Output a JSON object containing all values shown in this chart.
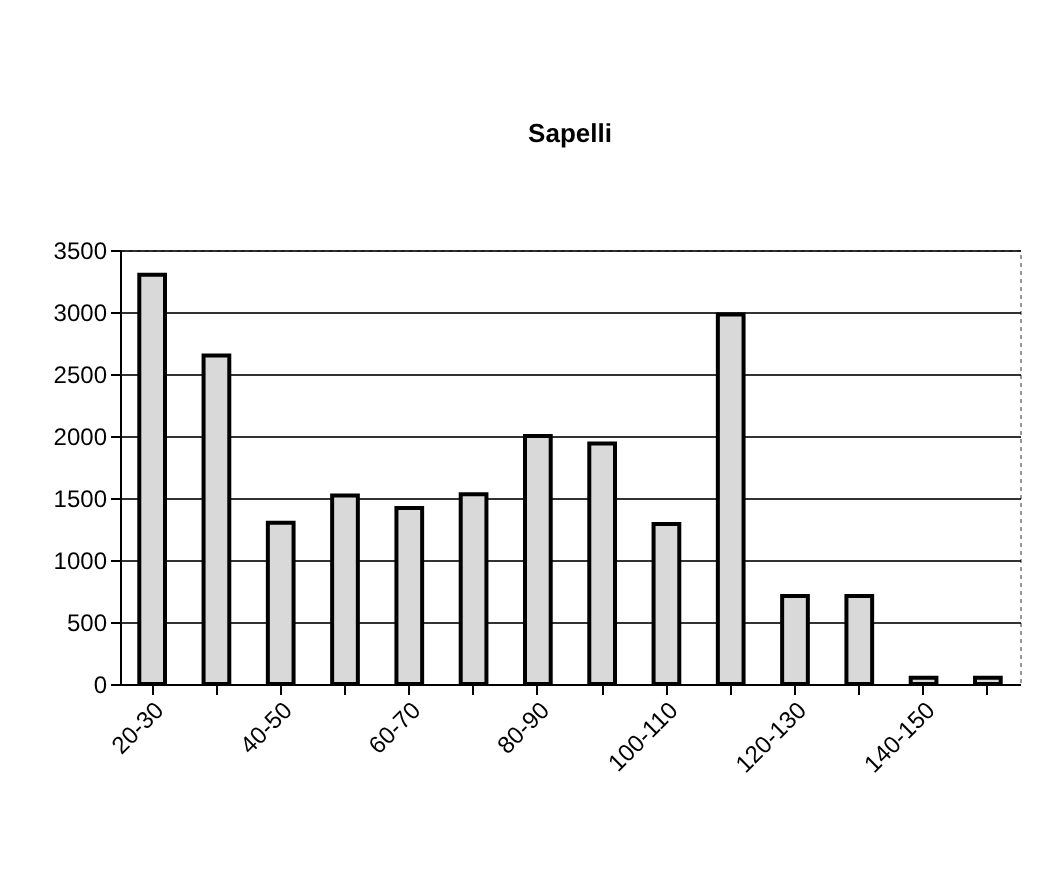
{
  "chart_data": {
    "type": "bar",
    "title": "Sapelli",
    "categories": [
      "20-30",
      null,
      "40-50",
      null,
      "60-70",
      null,
      "80-90",
      null,
      "100-110",
      null,
      "120-130",
      null,
      "140-150",
      null
    ],
    "values": [
      3300,
      2650,
      1300,
      1520,
      1420,
      1530,
      2000,
      1940,
      1290,
      2980,
      710,
      710,
      50,
      50
    ],
    "color": "#d9d9d9",
    "ylim": [
      0,
      3500
    ],
    "yticks": [
      0,
      500,
      1000,
      1500,
      2000,
      2500,
      3000,
      3500
    ],
    "grid": "y"
  }
}
